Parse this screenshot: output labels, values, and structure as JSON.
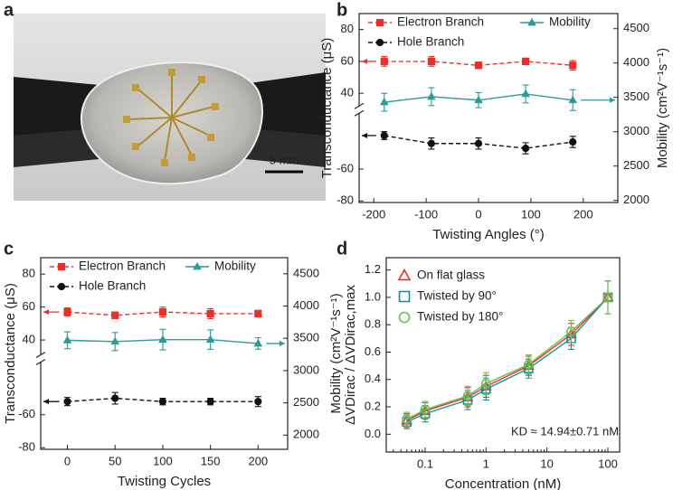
{
  "photo": {
    "panel_label": "a",
    "scale_bar": "5 mm"
  },
  "chart_data": [
    {
      "type": "line",
      "panel_label": "b",
      "x_label": "Twisting Angles (°)",
      "y_label": "Transconductance (μS)",
      "y2_label": "Mobility (cm²V⁻¹s⁻¹)",
      "x": [
        -180,
        -90,
        0,
        90,
        180
      ],
      "xlim": [
        -228,
        266
      ],
      "xticks": [
        -200,
        -100,
        0,
        100,
        200
      ],
      "ylim": [
        -81,
        90
      ],
      "ybreak": [
        -25,
        32
      ],
      "yticks": [
        -80,
        -60,
        40,
        60,
        80
      ],
      "y2lim": [
        1970,
        4720
      ],
      "y2ticks": [
        2000,
        2500,
        3000,
        3500,
        4000,
        4500
      ],
      "series": [
        {
          "name": "Electron Branch",
          "color": "#e8302a",
          "marker": "square",
          "dash": true,
          "axis": "y",
          "values": [
            60,
            60,
            57.5,
            60,
            57.5
          ],
          "errors": [
            3,
            3,
            2,
            2,
            3
          ]
        },
        {
          "name": "Hole Branch",
          "color": "#111111",
          "marker": "circle",
          "dash": true,
          "axis": "y",
          "values": [
            -39,
            -44,
            -44,
            -47,
            -43
          ],
          "errors": [
            2.5,
            3.5,
            3.5,
            3.5,
            3.5
          ]
        },
        {
          "name": "Mobility",
          "color": "#2a9a9a",
          "marker": "triangle",
          "dash": false,
          "axis": "y2",
          "values": [
            3430,
            3510,
            3460,
            3550,
            3460
          ],
          "errors": [
            130,
            130,
            110,
            130,
            150
          ]
        }
      ]
    },
    {
      "type": "line",
      "panel_label": "c",
      "x_label": "Twisting Cycles",
      "y_label": "Transconductance (μS)",
      "y2_label": "Mobility (cm²V⁻¹s⁻¹)",
      "x": [
        0,
        50,
        100,
        150,
        200
      ],
      "xlim": [
        -28,
        231
      ],
      "xticks": [
        0,
        50,
        100,
        150,
        200
      ],
      "ylim": [
        -81,
        90
      ],
      "ybreak": [
        -28,
        31
      ],
      "yticks": [
        -80,
        -60,
        40,
        60,
        80
      ],
      "y2lim": [
        1780,
        4750
      ],
      "y2ticks": [
        2000,
        2500,
        3000,
        3500,
        4000,
        4500
      ],
      "series": [
        {
          "name": "Electron Branch",
          "color": "#e8302a",
          "marker": "square",
          "dash": true,
          "axis": "y",
          "values": [
            57,
            55,
            57,
            56,
            56
          ],
          "errors": [
            2.5,
            2,
            3,
            3,
            2
          ]
        },
        {
          "name": "Hole Branch",
          "color": "#111111",
          "marker": "circle",
          "dash": true,
          "axis": "y",
          "values": [
            -52,
            -50,
            -52,
            -52,
            -52
          ],
          "errors": [
            2.5,
            3.5,
            2,
            2,
            3
          ]
        },
        {
          "name": "Mobility",
          "color": "#2a9a9a",
          "marker": "triangle",
          "dash": false,
          "axis": "y2",
          "values": [
            3470,
            3450,
            3480,
            3480,
            3420
          ],
          "errors": [
            130,
            140,
            160,
            150,
            90
          ]
        }
      ]
    },
    {
      "type": "line",
      "panel_label": "d",
      "xscale": "log",
      "x_label": "Concentration (nM)",
      "y_label": "ΔVDirac / ΔVDirac,max",
      "annotation": "KD ≈ 14.94±0.71 nM",
      "x": [
        0.05,
        0.1,
        0.5,
        1,
        5,
        25,
        100
      ],
      "xlim": [
        0.023,
        156
      ],
      "xticks": [
        0.1,
        1,
        10,
        100
      ],
      "ylim": [
        -0.13,
        1.29
      ],
      "yticks": [
        {
          "value": 0,
          "label": "0.0"
        },
        0.2,
        0.4,
        0.6,
        0.8,
        {
          "value": 1,
          "label": "1.0"
        },
        1.2
      ],
      "series": [
        {
          "name": "On flat glass",
          "color": "#e8302a",
          "marker": "triangle",
          "filled": false,
          "values": [
            0.1,
            0.17,
            0.27,
            0.35,
            0.5,
            0.73,
            1.0
          ],
          "errors": [
            0.05,
            0.06,
            0.07,
            0.08,
            0.07,
            0.08,
            0.12
          ]
        },
        {
          "name": "Twisted by 90°",
          "color": "#1f8f9a",
          "marker": "square",
          "filled": false,
          "values": [
            0.09,
            0.15,
            0.25,
            0.33,
            0.48,
            0.7,
            1.0
          ],
          "errors": [
            0.05,
            0.06,
            0.07,
            0.08,
            0.07,
            0.08,
            0.12
          ]
        },
        {
          "name": "Twisted by 180°",
          "color": "#6cc04a",
          "marker": "circle",
          "filled": false,
          "values": [
            0.11,
            0.18,
            0.28,
            0.37,
            0.51,
            0.75,
            1.0
          ],
          "errors": [
            0.05,
            0.06,
            0.07,
            0.08,
            0.07,
            0.08,
            0.12
          ]
        }
      ]
    }
  ]
}
